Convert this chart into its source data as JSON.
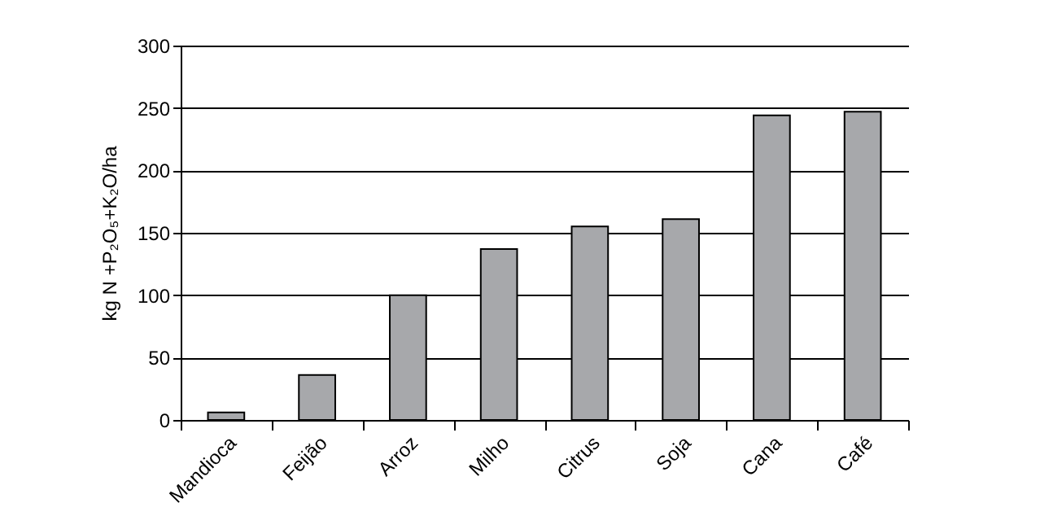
{
  "chart_data": {
    "type": "bar",
    "ylabel": "kg N +P₂O₅+K₂O/ha",
    "categories": [
      "Mandioca",
      "Feijão",
      "Arroz",
      "Milho",
      "Citrus",
      "Soja",
      "Cana",
      "Café"
    ],
    "values": [
      6,
      36,
      100,
      137,
      155,
      161,
      244,
      247
    ],
    "color": "#a7a8ab",
    "ylim": [
      0,
      300
    ],
    "yticks": [
      0,
      50,
      100,
      150,
      200,
      250,
      300
    ],
    "grid": "y"
  }
}
